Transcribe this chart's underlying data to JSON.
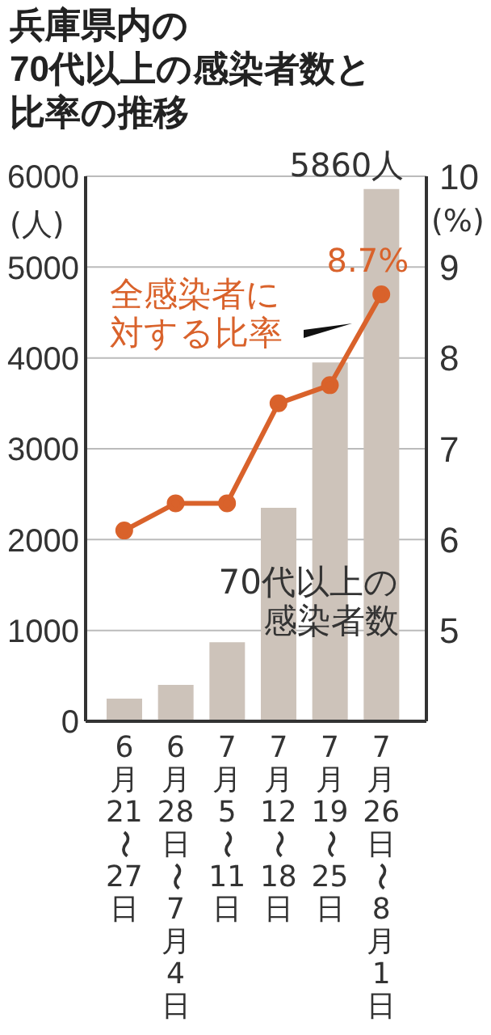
{
  "chart_data": {
    "type": "bar",
    "title": "兵庫県内の",
    "subtitle": "70代以上の感染者数と比率の推移",
    "ylabel": "(人)",
    "y2label": "(%)",
    "categories": [
      "6月21〜27日",
      "6月28日〜7月4日",
      "7月5〜11日",
      "7月12〜18日",
      "7月19〜25日",
      "7月26日〜8月1日"
    ],
    "series": [
      {
        "name": "70代以上の感染者数",
        "color": "#cdc3ba",
        "values": [
          250,
          400,
          870,
          2350,
          3950,
          5860
        ],
        "value_labels": [
          null,
          null,
          null,
          null,
          null,
          "5860人"
        ]
      },
      {
        "name": "全感染者に対する比率",
        "type": "line",
        "axis": "y2",
        "color": "#d9622b",
        "values": [
          6.1,
          6.4,
          6.4,
          7.5,
          7.7,
          8.7
        ],
        "value_labels": [
          null,
          null,
          null,
          null,
          null,
          "8.7%"
        ]
      }
    ],
    "ylim": [
      0,
      6000
    ],
    "yticks": [
      0,
      1000,
      2000,
      3000,
      4000,
      5000,
      6000
    ],
    "y2lim": [
      4,
      10
    ],
    "y2ticks": [
      5,
      6,
      7,
      8,
      9,
      10
    ],
    "grid": "y",
    "marker": "circle",
    "line_style": "solid"
  }
}
